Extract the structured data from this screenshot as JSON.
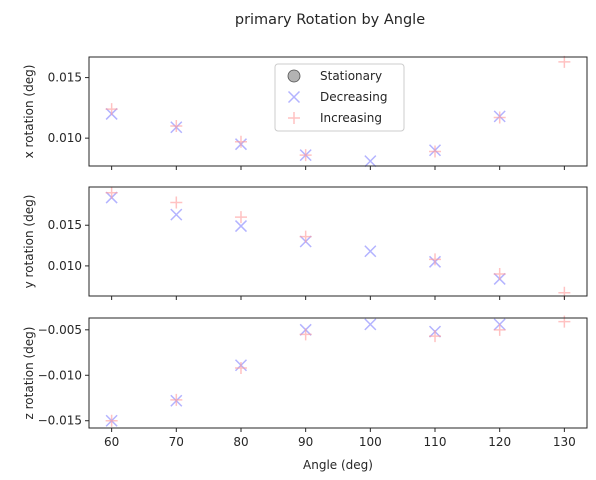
{
  "chart_data": {
    "type": "scatter",
    "title": "primary Rotation by Angle",
    "xlabel": "Angle (deg)",
    "x_ticks": [
      60,
      70,
      80,
      90,
      100,
      110,
      120,
      130
    ],
    "xlim": [
      56.5,
      133.5
    ],
    "legend": {
      "placement": "upper center of top panel",
      "entries": [
        {
          "label": "Stationary",
          "marker": "circle",
          "color": "#808080"
        },
        {
          "label": "Decreasing",
          "marker": "x",
          "color": "#8080ff"
        },
        {
          "label": "Increasing",
          "marker": "plus",
          "color": "#ff9999"
        }
      ]
    },
    "panels": [
      {
        "ylabel": "x rotation (deg)",
        "ylim": [
          0.0077,
          0.0167
        ],
        "y_ticks": [
          0.01,
          0.015
        ],
        "y_tick_labels": [
          "0.010",
          "0.015"
        ],
        "series": [
          {
            "name": "Decreasing",
            "x": [
              60,
              70,
              80,
              90,
              100,
              110,
              120
            ],
            "y": [
              0.012,
              0.0109,
              0.0095,
              0.0086,
              0.0081,
              0.009,
              0.0118
            ]
          },
          {
            "name": "Increasing",
            "x": [
              60,
              70,
              80,
              90,
              110,
              120,
              130
            ],
            "y": [
              0.0124,
              0.011,
              0.0097,
              0.0086,
              0.0089,
              0.0117,
              0.0163
            ]
          }
        ]
      },
      {
        "ylabel": "y rotation (deg)",
        "ylim": [
          0.0063,
          0.0197
        ],
        "y_ticks": [
          0.01,
          0.015
        ],
        "y_tick_labels": [
          "0.010",
          "0.015"
        ],
        "series": [
          {
            "name": "Decreasing",
            "x": [
              60,
              70,
              80,
              90,
              100,
              110,
              120
            ],
            "y": [
              0.0184,
              0.0163,
              0.0149,
              0.013,
              0.0118,
              0.0105,
              0.0084
            ]
          },
          {
            "name": "Increasing",
            "x": [
              60,
              70,
              80,
              90,
              110,
              120,
              130
            ],
            "y": [
              0.019,
              0.0178,
              0.016,
              0.0136,
              0.0108,
              0.009,
              0.0067
            ]
          }
        ]
      },
      {
        "ylabel": "z rotation (deg)",
        "ylim": [
          -0.0158,
          -0.0037
        ],
        "y_ticks": [
          -0.015,
          -0.01,
          -0.005
        ],
        "y_tick_labels": [
          "−0.015",
          "−0.010",
          "−0.005"
        ],
        "series": [
          {
            "name": "Decreasing",
            "x": [
              60,
              70,
              80,
              90,
              100,
              110,
              120
            ],
            "y": [
              -0.015,
              -0.0128,
              -0.0089,
              -0.005,
              -0.0044,
              -0.0052,
              -0.0044
            ]
          },
          {
            "name": "Increasing",
            "x": [
              60,
              70,
              80,
              90,
              110,
              120,
              130
            ],
            "y": [
              -0.015,
              -0.0127,
              -0.0092,
              -0.0055,
              -0.0057,
              -0.005,
              -0.0041
            ]
          }
        ]
      }
    ]
  }
}
